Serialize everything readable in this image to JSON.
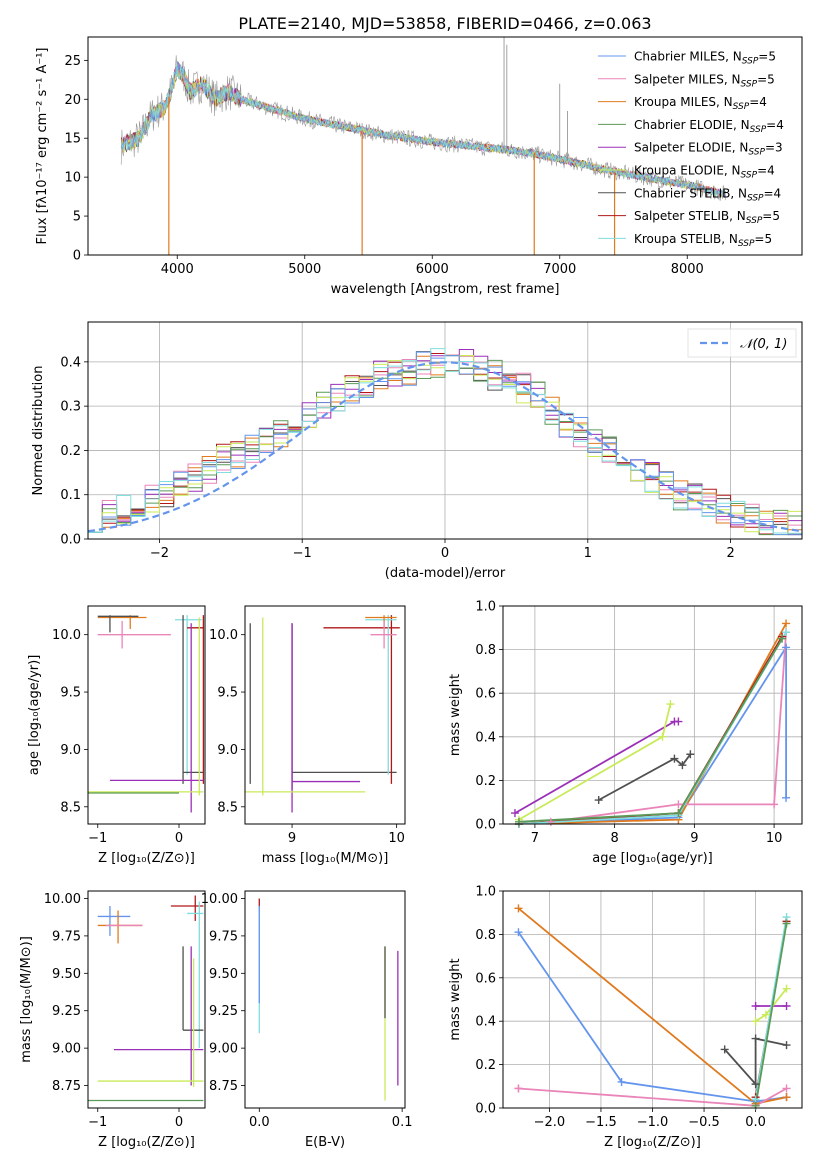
{
  "title": "PLATE=2140, MJD=53858, FIBERID=0466, z=0.063",
  "colors": {
    "chabrier_miles": "#6495ed",
    "salpeter_miles": "#ea85b9",
    "kroupa_miles": "#e07a1f",
    "chabrier_elodie": "#5b9a57",
    "salpeter_elodie": "#9b30b8",
    "kroupa_elodie": "#c9ea5a",
    "chabrier_stelib": "#505050",
    "salpeter_stelib": "#b01818",
    "kroupa_stelib": "#80dede",
    "data": "#8c8c8c",
    "normal": "#6495ed"
  },
  "legend_spectrum": [
    {
      "key": "chabrier_miles",
      "label": "Chabrier MILES, N",
      "sub": "SSP",
      "val": "=5"
    },
    {
      "key": "salpeter_miles",
      "label": "Salpeter MILES, N",
      "sub": "SSP",
      "val": "=5"
    },
    {
      "key": "kroupa_miles",
      "label": "Kroupa MILES, N",
      "sub": "SSP",
      "val": "=4"
    },
    {
      "key": "chabrier_elodie",
      "label": "Chabrier ELODIE, N",
      "sub": "SSP",
      "val": "=4"
    },
    {
      "key": "salpeter_elodie",
      "label": "Salpeter ELODIE, N",
      "sub": "SSP",
      "val": "=3"
    },
    {
      "key": "kroupa_elodie",
      "label": "Kroupa ELODIE, N",
      "sub": "SSP",
      "val": "=4"
    },
    {
      "key": "chabrier_stelib",
      "label": "Chabrier STELIB, N",
      "sub": "SSP",
      "val": "=4"
    },
    {
      "key": "salpeter_stelib",
      "label": "Salpeter STELIB, N",
      "sub": "SSP",
      "val": "=5"
    },
    {
      "key": "kroupa_stelib",
      "label": "Kroupa STELIB, N",
      "sub": "SSP",
      "val": "=5"
    }
  ],
  "chart_data": [
    {
      "id": "spectrum",
      "type": "line",
      "xlabel": "wavelength [Angstrom, rest frame]",
      "ylabel": "Flux [fλ10⁻¹⁷ erg cm⁻² s⁻¹ A⁻¹]",
      "xlim": [
        3300,
        8900
      ],
      "ylim": [
        0,
        28
      ],
      "xticks": [
        4000,
        5000,
        6000,
        7000,
        8000
      ],
      "yticks": [
        0,
        5,
        10,
        15,
        20,
        25
      ],
      "continuum": [
        [
          3560,
          14
        ],
        [
          3700,
          15
        ],
        [
          3800,
          18
        ],
        [
          3900,
          19
        ],
        [
          3950,
          21
        ],
        [
          4000,
          24
        ],
        [
          4050,
          23
        ],
        [
          4100,
          21
        ],
        [
          4200,
          22
        ],
        [
          4300,
          20
        ],
        [
          4400,
          21
        ],
        [
          4500,
          20
        ],
        [
          4600,
          19.5
        ],
        [
          4800,
          18.5
        ],
        [
          5000,
          17.5
        ],
        [
          5200,
          16.8
        ],
        [
          5400,
          16.2
        ],
        [
          5600,
          15.5
        ],
        [
          5800,
          15
        ],
        [
          6000,
          14.5
        ],
        [
          6200,
          14.2
        ],
        [
          6400,
          13.8
        ],
        [
          6600,
          13.5
        ],
        [
          6800,
          13
        ],
        [
          7000,
          12.3
        ],
        [
          7200,
          11.6
        ],
        [
          7400,
          10.8
        ],
        [
          7600,
          10.2
        ],
        [
          7800,
          9.6
        ],
        [
          8000,
          9
        ],
        [
          8200,
          8.2
        ],
        [
          8300,
          7.8
        ]
      ],
      "dips": [
        [
          3934,
          0
        ],
        [
          5450,
          0
        ],
        [
          6800,
          0
        ],
        [
          7430,
          0
        ]
      ]
    },
    {
      "id": "residuals",
      "type": "histogram",
      "xlabel": "(data-model)/error",
      "ylabel": "Normed distribution",
      "xlim": [
        -2.5,
        2.5
      ],
      "ylim": [
        0,
        0.49
      ],
      "xticks": [
        -2,
        -1,
        0,
        1,
        2
      ],
      "yticks": [
        0.0,
        0.1,
        0.2,
        0.3,
        0.4
      ],
      "legend": "𝒩(0, 1)",
      "profile": [
        0.05,
        0.06,
        0.065,
        0.08,
        0.09,
        0.1,
        0.12,
        0.14,
        0.16,
        0.18,
        0.19,
        0.2,
        0.22,
        0.24,
        0.26,
        0.28,
        0.3,
        0.32,
        0.34,
        0.35,
        0.37,
        0.38,
        0.38,
        0.39,
        0.4,
        0.4,
        0.4,
        0.39,
        0.37,
        0.35,
        0.34,
        0.32,
        0.29,
        0.26,
        0.24,
        0.22,
        0.2,
        0.18,
        0.16,
        0.14,
        0.12,
        0.1,
        0.09,
        0.08,
        0.07,
        0.06,
        0.05,
        0.04,
        0.03,
        0.03
      ]
    },
    {
      "id": "z_age",
      "type": "scatter",
      "xlabel": "Z [log₁₀(Z/Z⊙)]",
      "ylabel": "age  [log₁₀(age/yr)]",
      "xlim": [
        -1.12,
        0.32
      ],
      "ylim": [
        8.35,
        10.25
      ],
      "xticks": [
        -1,
        0
      ],
      "yticks": [
        8.5,
        9.0,
        9.5,
        10.0
      ]
    },
    {
      "id": "mass_age",
      "type": "scatter",
      "xlabel": "mass [log₁₀(M/M⊙)]",
      "ylabel": "",
      "xlim": [
        8.55,
        10.08
      ],
      "ylim": [
        8.35,
        10.25
      ],
      "xticks": [
        9,
        10
      ],
      "yticks": [
        8.5,
        9.0,
        9.5,
        10.0
      ]
    },
    {
      "id": "age_weight",
      "type": "line",
      "xlabel": "age  [log₁₀(age/yr)]",
      "ylabel": "mass weight",
      "xlim": [
        6.6,
        10.35
      ],
      "ylim": [
        0,
        1.0
      ],
      "xticks": [
        7,
        8,
        9,
        10
      ],
      "yticks": [
        0.0,
        0.2,
        0.4,
        0.6,
        0.8,
        1.0
      ],
      "series": [
        {
          "key": "chabrier_miles",
          "points": [
            [
              6.8,
              0.0
            ],
            [
              8.8,
              0.03
            ],
            [
              10.15,
              0.81
            ],
            [
              10.15,
              0.12
            ]
          ]
        },
        {
          "key": "kroupa_miles",
          "points": [
            [
              6.8,
              0.0
            ],
            [
              8.8,
              0.02
            ],
            [
              10.15,
              0.92
            ]
          ]
        },
        {
          "key": "salpeter_miles",
          "points": [
            [
              7.2,
              0.01
            ],
            [
              8.8,
              0.09
            ],
            [
              10.0,
              0.09
            ],
            [
              10.15,
              0.88
            ]
          ]
        },
        {
          "key": "salpeter_elodie",
          "points": [
            [
              6.75,
              0.05
            ],
            [
              8.75,
              0.47
            ],
            [
              8.8,
              0.47
            ]
          ]
        },
        {
          "key": "kroupa_elodie",
          "points": [
            [
              6.8,
              0.02
            ],
            [
              8.6,
              0.4
            ],
            [
              8.7,
              0.55
            ]
          ]
        },
        {
          "key": "chabrier_stelib",
          "points": [
            [
              7.8,
              0.11
            ],
            [
              8.75,
              0.3
            ],
            [
              8.85,
              0.27
            ],
            [
              8.95,
              0.32
            ]
          ]
        },
        {
          "key": "salpeter_stelib",
          "points": [
            [
              6.8,
              0.0
            ],
            [
              8.8,
              0.05
            ],
            [
              10.1,
              0.86
            ]
          ]
        },
        {
          "key": "kroupa_stelib",
          "points": [
            [
              6.8,
              0.0
            ],
            [
              8.8,
              0.04
            ],
            [
              10.15,
              0.88
            ]
          ]
        },
        {
          "key": "chabrier_elodie",
          "points": [
            [
              6.8,
              0.01
            ],
            [
              8.8,
              0.05
            ],
            [
              10.1,
              0.85
            ]
          ]
        }
      ]
    },
    {
      "id": "z_mass",
      "type": "scatter",
      "xlabel": "Z [log₁₀(Z/Z⊙)]",
      "ylabel": "mass [log₁₀(M/M⊙)]",
      "xlim": [
        -1.12,
        0.32
      ],
      "ylim": [
        8.6,
        10.05
      ],
      "xticks": [
        -1,
        0
      ],
      "yticks": [
        8.75,
        9.0,
        9.25,
        9.5,
        9.75,
        10.0
      ]
    },
    {
      "id": "ebv_mass",
      "type": "scatter",
      "xlabel": "E(B-V)",
      "ylabel": "",
      "xlim": [
        -0.01,
        0.102
      ],
      "ylim": [
        8.6,
        10.05
      ],
      "xticks": [
        0.0,
        0.1
      ],
      "yticks": [
        8.75,
        9.0,
        9.25,
        9.5,
        9.75,
        10.0
      ]
    },
    {
      "id": "z_weight",
      "type": "line",
      "xlabel": "Z [log₁₀(Z/Z⊙)]",
      "ylabel": "mass weight",
      "xlim": [
        -2.45,
        0.45
      ],
      "ylim": [
        0,
        1.0
      ],
      "xticks": [
        -2.0,
        -1.5,
        -1.0,
        -0.5,
        0.0
      ],
      "yticks": [
        0.0,
        0.2,
        0.4,
        0.6,
        0.8,
        1.0
      ],
      "series": [
        {
          "key": "chabrier_miles",
          "points": [
            [
              -2.3,
              0.81
            ],
            [
              -1.3,
              0.12
            ],
            [
              0.0,
              0.03
            ],
            [
              0.3,
              0.05
            ]
          ]
        },
        {
          "key": "kroupa_miles",
          "points": [
            [
              -2.3,
              0.92
            ],
            [
              0.0,
              0.02
            ],
            [
              0.3,
              0.05
            ]
          ]
        },
        {
          "key": "salpeter_miles",
          "points": [
            [
              -2.3,
              0.09
            ],
            [
              -2.3,
              0.09
            ],
            [
              0.0,
              0.01
            ],
            [
              0.3,
              0.09
            ]
          ]
        },
        {
          "key": "salpeter_elodie",
          "points": [
            [
              0.0,
              0.47
            ],
            [
              0.3,
              0.47
            ]
          ]
        },
        {
          "key": "kroupa_elodie",
          "points": [
            [
              0.0,
              0.4
            ],
            [
              0.1,
              0.43
            ],
            [
              0.3,
              0.55
            ]
          ]
        },
        {
          "key": "chabrier_stelib",
          "points": [
            [
              -0.3,
              0.27
            ],
            [
              0.0,
              0.11
            ],
            [
              0.0,
              0.32
            ],
            [
              0.3,
              0.29
            ]
          ]
        },
        {
          "key": "salpeter_stelib",
          "points": [
            [
              0.0,
              0.05
            ],
            [
              0.3,
              0.86
            ]
          ]
        },
        {
          "key": "kroupa_stelib",
          "points": [
            [
              0.0,
              0.04
            ],
            [
              0.3,
              0.88
            ]
          ]
        },
        {
          "key": "chabrier_elodie",
          "points": [
            [
              0.0,
              0.01
            ],
            [
              0.3,
              0.85
            ]
          ]
        }
      ]
    }
  ]
}
